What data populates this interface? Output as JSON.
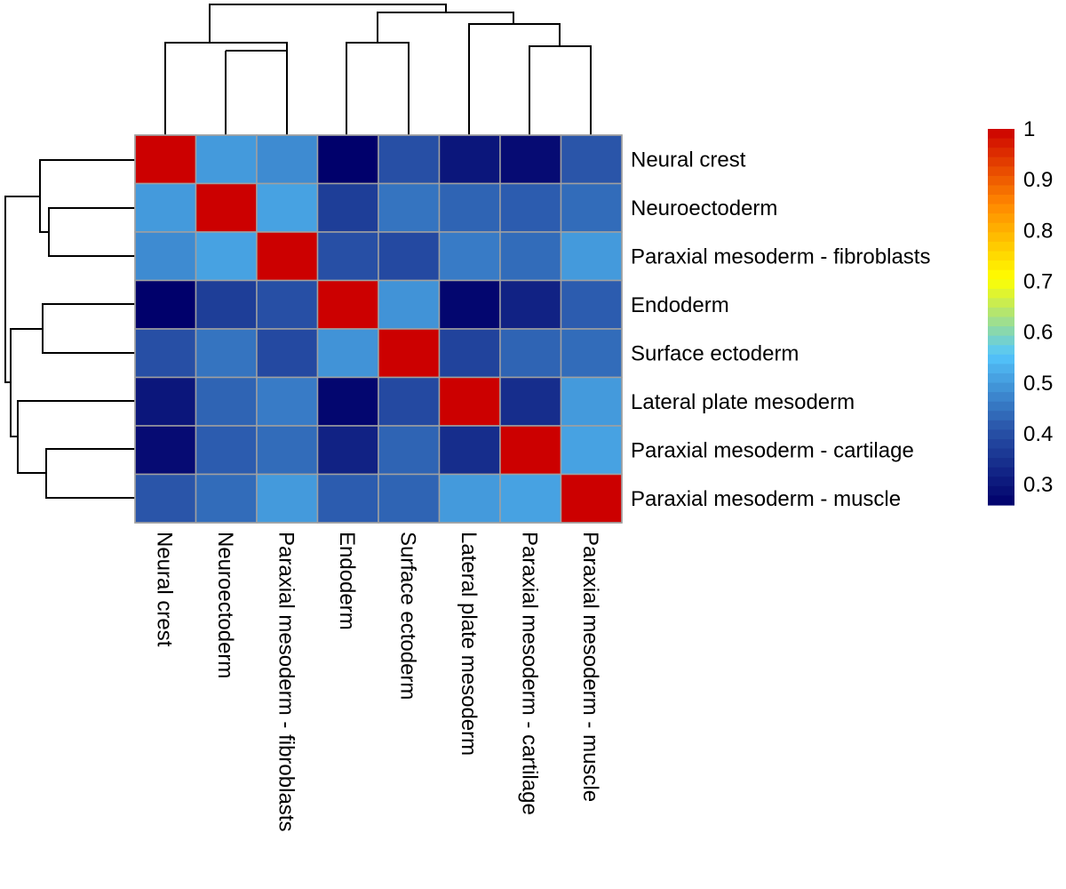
{
  "chart_data": {
    "type": "heatmap",
    "title": "",
    "xlabel": "",
    "ylabel": "",
    "rows": [
      "Neural crest",
      "Neuroectoderm",
      "Paraxial mesoderm - fibroblasts",
      "Endoderm",
      "Surface ectoderm",
      "Lateral plate mesoderm",
      "Paraxial mesoderm - cartilage",
      "Paraxial mesoderm - muscle"
    ],
    "columns": [
      "Neural crest",
      "Neuroectoderm",
      "Paraxial mesoderm - fibroblasts",
      "Endoderm",
      "Surface ectoderm",
      "Lateral plate mesoderm",
      "Paraxial mesoderm - cartilage",
      "Paraxial mesoderm - muscle"
    ],
    "values": [
      [
        1.0,
        0.5,
        0.48,
        0.26,
        0.4,
        0.3,
        0.28,
        0.41
      ],
      [
        0.5,
        1.0,
        0.51,
        0.37,
        0.45,
        0.43,
        0.42,
        0.44
      ],
      [
        0.48,
        0.51,
        1.0,
        0.4,
        0.39,
        0.46,
        0.44,
        0.5
      ],
      [
        0.26,
        0.37,
        0.4,
        1.0,
        0.49,
        0.27,
        0.32,
        0.42
      ],
      [
        0.4,
        0.45,
        0.39,
        0.49,
        1.0,
        0.38,
        0.43,
        0.44
      ],
      [
        0.3,
        0.43,
        0.46,
        0.27,
        0.39,
        1.0,
        0.34,
        0.5
      ],
      [
        0.28,
        0.42,
        0.44,
        0.32,
        0.43,
        0.34,
        1.0,
        0.51
      ],
      [
        0.41,
        0.44,
        0.5,
        0.42,
        0.43,
        0.5,
        0.51,
        1.0
      ]
    ],
    "color_scale": {
      "min": 0.26,
      "max": 1.0,
      "colors": [
        "#00006b",
        "#2953a8",
        "#54c6fc",
        "#ffff00",
        "#ff8800",
        "#cc0000"
      ],
      "ticks": [
        "0.3",
        "0.4",
        "0.5",
        "0.6",
        "0.7",
        "0.8",
        "0.9",
        "1"
      ],
      "tick_values": [
        0.3,
        0.4,
        0.5,
        0.6,
        0.7,
        0.8,
        0.9,
        1.0
      ]
    },
    "grid": true,
    "legend_placement": "right",
    "row_dendrogram": true,
    "column_dendrogram": true
  }
}
